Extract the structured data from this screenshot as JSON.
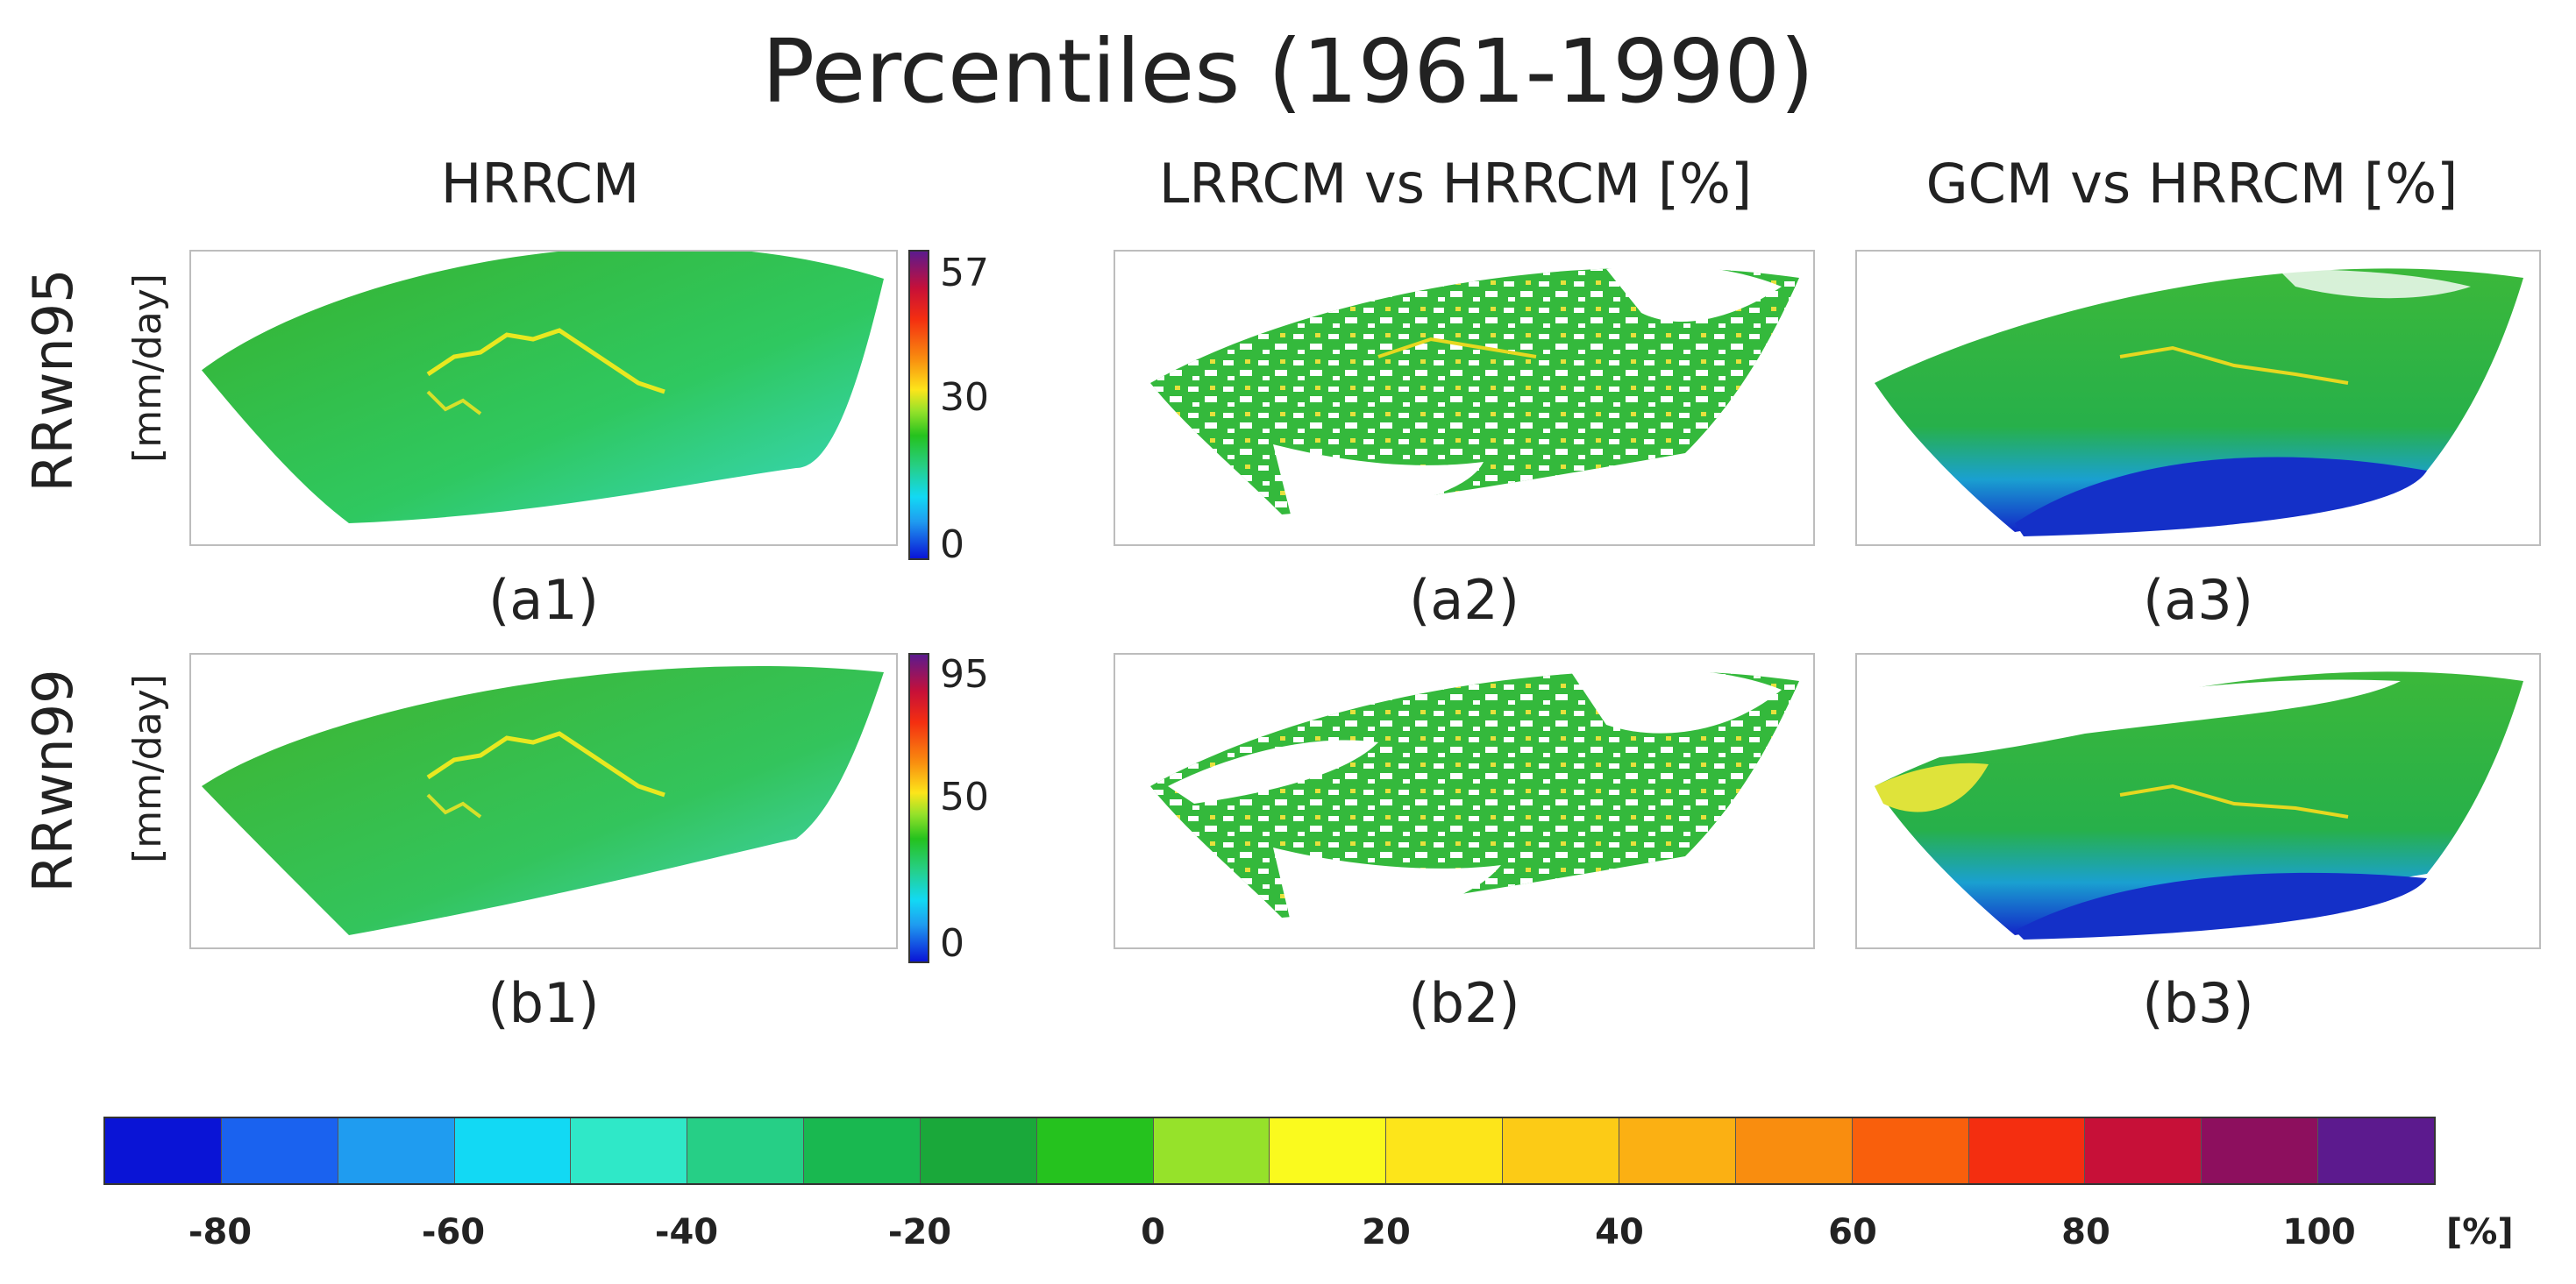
{
  "title": "Percentiles (1961-1990)",
  "columns": [
    "HRRCM",
    "LRRCM vs HRRCM [%]",
    "GCM vs HRRCM [%]"
  ],
  "rows": [
    {
      "label": "RRwn95",
      "unit": "[mm/day]"
    },
    {
      "label": "RRwn99",
      "unit": "[mm/day]"
    }
  ],
  "panel_labels": {
    "a1": "(a1)",
    "a2": "(a2)",
    "a3": "(a3)",
    "b1": "(b1)",
    "b2": "(b2)",
    "b3": "(b3)"
  },
  "colorbar_a": {
    "ticks": [
      "57",
      "30",
      "0"
    ]
  },
  "colorbar_b": {
    "ticks": [
      "95",
      "50",
      "0"
    ]
  },
  "bottom_colorbar": {
    "ticks": [
      "-80",
      "-60",
      "-40",
      "-20",
      "0",
      "20",
      "40",
      "60",
      "80",
      "100"
    ],
    "unit": "[%]",
    "colors": [
      "#0a14d6",
      "#1a62ef",
      "#1f9cf0",
      "#12d9f4",
      "#2fe8c8",
      "#26cf86",
      "#19b850",
      "#1aa83a",
      "#25c21e",
      "#96e22a",
      "#fafa1e",
      "#fde51a",
      "#fccb16",
      "#fbb013",
      "#f98d0f",
      "#f95f0c",
      "#f42e10",
      "#c71038",
      "#8d0f5e",
      "#5c1a8e"
    ]
  },
  "colors": {
    "field_green": "#3fb83a",
    "field_cyan": "#38d8c4",
    "deficit_blue": "#1430c8"
  }
}
